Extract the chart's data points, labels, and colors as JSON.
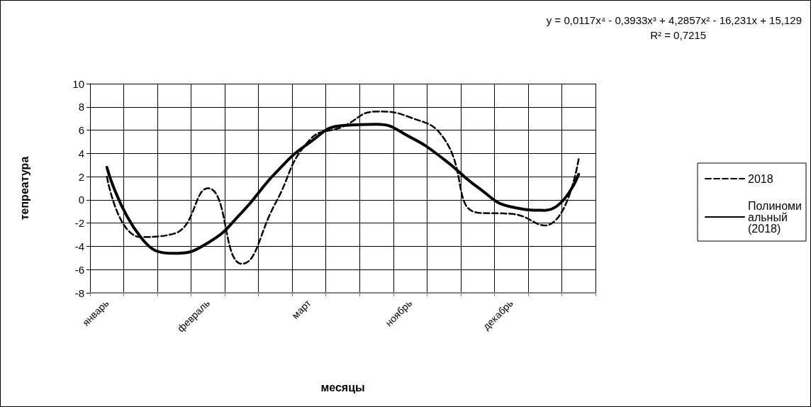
{
  "chart_data": {
    "type": "line",
    "xlabel": "месяцы",
    "ylabel": "тепреатура",
    "categories": [
      "январь",
      null,
      null,
      "февраль",
      null,
      null,
      "март",
      null,
      null,
      "ноябрь",
      null,
      null,
      "декабрь",
      null,
      null
    ],
    "series": [
      {
        "name": "2018",
        "color": "#000000",
        "line_style": "dashed",
        "values": [
          2,
          -3.2,
          -2.9,
          1,
          -5.5,
          -0.3,
          5.1,
          6.3,
          7.6,
          7.1,
          5.3,
          -1.1,
          -1.2,
          -2.2,
          3.5
        ]
      },
      {
        "name": "Полиномиальный (2018)",
        "color": "#000000",
        "line_style": "solid",
        "values": [
          2.8,
          -3.2,
          -4.6,
          -3.7,
          -1.1,
          2.3,
          4.9,
          6.4,
          6.5,
          5.4,
          3.5,
          1.1,
          -0.6,
          -0.9,
          2.2
        ]
      }
    ],
    "ylim": [
      -8,
      10
    ],
    "yticks": [
      -8,
      -6,
      -4,
      -2,
      0,
      2,
      4,
      6,
      8,
      10
    ],
    "grid": true,
    "legend": "right",
    "marker": "none",
    "annotations": [
      "y = 0,0117x⁴ - 0,3933x³ + 4,2857x² - 16,231x + 15,129",
      "R² = 0,7215"
    ]
  }
}
